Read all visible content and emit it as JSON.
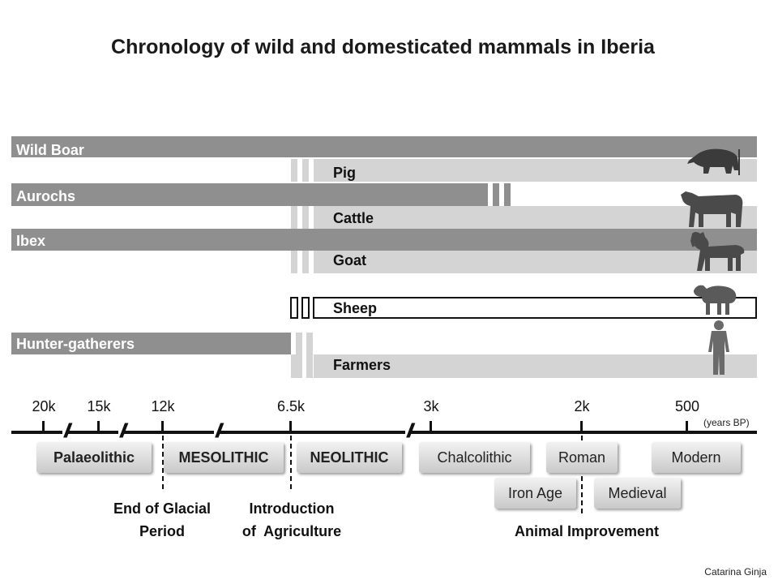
{
  "title": "Chronology of wild and domesticated mammals in Iberia",
  "bands": {
    "wild_boar": "Wild Boar",
    "pig": "Pig",
    "aurochs": "Aurochs",
    "cattle": "Cattle",
    "ibex": "Ibex",
    "goat": "Goat",
    "sheep": "Sheep",
    "hunter_gatherers": "Hunter-gatherers",
    "farmers": "Farmers"
  },
  "timeline": {
    "ticks": [
      "20k",
      "15k",
      "12k",
      "6.5k",
      "3k",
      "2k",
      "500"
    ],
    "unit": "(years BP)"
  },
  "periods": {
    "palaeolithic": "Palaeolithic",
    "mesolithic": "MESOLITHIC",
    "neolithic": "NEOLITHIC",
    "chalcolithic": "Chalcolithic",
    "roman": "Roman",
    "modern": "Modern",
    "iron_age": "Iron Age",
    "medieval": "Medieval"
  },
  "captions": {
    "end_glacial": "End of Glacial\nPeriod",
    "agriculture": "Introduction\nof  Agriculture",
    "animal_improvement": "Animal Improvement"
  },
  "credit": "Catarina Ginja",
  "icons": [
    "boar-icon",
    "cow-icon",
    "goat-icon",
    "sheep-icon",
    "human-icon"
  ]
}
